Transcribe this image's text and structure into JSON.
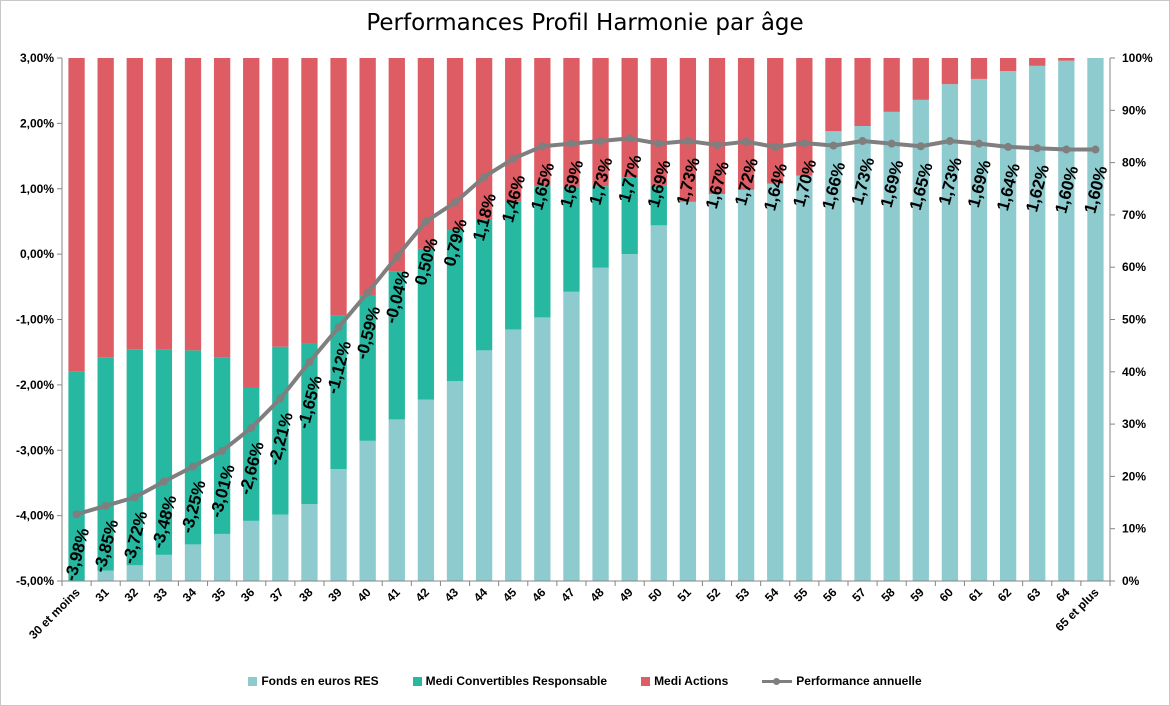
{
  "chart_data": {
    "type": "bar",
    "stacked": true,
    "title": "Performances Profil Harmonie par âge",
    "categories": [
      "30 et moins",
      "31",
      "32",
      "33",
      "34",
      "35",
      "36",
      "37",
      "38",
      "39",
      "40",
      "41",
      "42",
      "43",
      "44",
      "45",
      "46",
      "47",
      "48",
      "49",
      "50",
      "51",
      "52",
      "53",
      "54",
      "55",
      "56",
      "57",
      "58",
      "59",
      "60",
      "61",
      "62",
      "63",
      "64",
      "65 et plus"
    ],
    "series": [
      {
        "name": "Fonds en euros RES",
        "axis": "right",
        "color": "#8ecbce",
        "values": [
          0,
          2,
          3,
          5,
          7,
          9,
          11.5,
          12.7,
          14.7,
          21.4,
          26.8,
          30.9,
          34.7,
          38.2,
          44.1,
          48.1,
          50.4,
          55.3,
          59.9,
          62.5,
          68,
          72.5,
          74,
          74.8,
          76,
          77.5,
          86,
          87,
          89.7,
          92,
          95,
          96,
          97.5,
          98.5,
          99.5,
          100
        ]
      },
      {
        "name": "Medi Convertibles Responsable",
        "axis": "right",
        "color": "#26b8a0",
        "values": [
          40,
          40.8,
          41.3,
          39.2,
          37.1,
          33.7,
          25.5,
          32.1,
          30.8,
          29.3,
          27.8,
          28.3,
          28.8,
          28.9,
          25.1,
          24.4,
          25.1,
          20.1,
          15.6,
          14.6,
          7.6,
          0,
          0,
          0,
          0,
          0,
          0,
          0,
          0,
          0,
          0,
          0,
          0,
          0,
          0,
          0
        ]
      },
      {
        "name": "Medi Actions",
        "axis": "right",
        "color": "#de5c63",
        "values": [
          60,
          57.2,
          55.7,
          55.8,
          55.9,
          57.3,
          63,
          55.2,
          54.5,
          49.3,
          45.4,
          40.8,
          36.5,
          32.9,
          30.8,
          27.5,
          24.5,
          24.6,
          24.5,
          22.9,
          24.4,
          27.5,
          26,
          25.2,
          24,
          22.5,
          14,
          13,
          10.3,
          8,
          5,
          4,
          2.5,
          1.5,
          0.5,
          0
        ]
      },
      {
        "name": "Performance annuelle",
        "type": "line",
        "axis": "left",
        "color": "#7f7f7f",
        "values": [
          -3.98,
          -3.85,
          -3.72,
          -3.48,
          -3.25,
          -3.01,
          -2.66,
          -2.21,
          -1.65,
          -1.12,
          -0.59,
          -0.04,
          0.5,
          0.79,
          1.18,
          1.46,
          1.65,
          1.69,
          1.73,
          1.77,
          1.69,
          1.73,
          1.67,
          1.72,
          1.64,
          1.7,
          1.66,
          1.73,
          1.69,
          1.65,
          1.73,
          1.69,
          1.64,
          1.62,
          1.6,
          1.6
        ]
      }
    ],
    "data_labels": [
      "-3,98%",
      "-3,85%",
      "-3,72%",
      "-3,48%",
      "-3,25%",
      "-3,01%",
      "-2,66%",
      "-2,21%",
      "-1,65%",
      "-1,12%",
      "-0,59%",
      "-0,04%",
      "0,50%",
      "0,79%",
      "1,18%",
      "1,46%",
      "1,65%",
      "1,69%",
      "1,73%",
      "1,77%",
      "1,69%",
      "1,73%",
      "1,67%",
      "1,72%",
      "1,64%",
      "1,70%",
      "1,66%",
      "1,73%",
      "1,69%",
      "1,65%",
      "1,73%",
      "1,69%",
      "1,64%",
      "1,62%",
      "1,60%",
      "1,60%"
    ],
    "y_left": {
      "min": -5,
      "max": 3,
      "step": 1,
      "tick_labels": [
        "3,00%",
        "2,00%",
        "1,00%",
        "0,00%",
        "-1,00%",
        "-2,00%",
        "-3,00%",
        "-4,00%",
        "-5,00%"
      ]
    },
    "y_right": {
      "min": 0,
      "max": 100,
      "step": 10,
      "tick_labels": [
        "100%",
        "90%",
        "80%",
        "70%",
        "60%",
        "50%",
        "40%",
        "30%",
        "20%",
        "10%",
        "0%"
      ]
    },
    "legend_position": "bottom",
    "grid": false
  }
}
